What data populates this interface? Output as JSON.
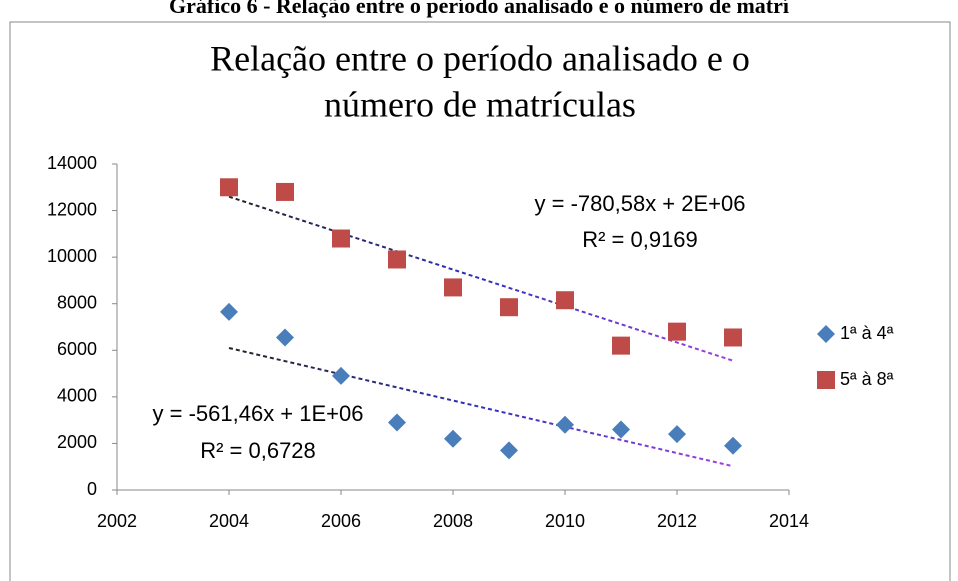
{
  "caption": "Gráfico 6 - Relação entre o período analisado e o número de matrí",
  "chart_data": {
    "type": "scatter",
    "title": [
      "Relação entre o período analisado e o",
      "número de matrículas"
    ],
    "series": [
      {
        "name": "1ª à 4ª",
        "color": "#4a7ebb",
        "marker": "diamond",
        "x": [
          2004,
          2005,
          2006,
          2007,
          2008,
          2009,
          2010,
          2011,
          2012,
          2013
        ],
        "values": [
          7650,
          6550,
          4900,
          2900,
          2200,
          1700,
          2800,
          2600,
          2400,
          1900
        ]
      },
      {
        "name": "5ª à 8ª",
        "color": "#be4b48",
        "marker": "square",
        "x": [
          2004,
          2005,
          2006,
          2007,
          2008,
          2009,
          2010,
          2011,
          2012,
          2013
        ],
        "values": [
          13000,
          12800,
          10800,
          9900,
          8700,
          7850,
          8150,
          6200,
          6800,
          6550
        ]
      }
    ],
    "trendline": true,
    "annotations": [
      "y = -780,58x + 2E+06",
      "R² = 0,9169",
      "y = -561,46x + 1E+06",
      "R² = 0,6728"
    ],
    "xlim": [
      2002,
      2014
    ],
    "xticks": [
      2002,
      2004,
      2006,
      2008,
      2010,
      2012,
      2014
    ],
    "ylim": [
      0,
      14000
    ],
    "yticks": [
      0,
      2000,
      4000,
      6000,
      8000,
      10000,
      12000,
      14000
    ],
    "grid": false,
    "legend": "right"
  }
}
